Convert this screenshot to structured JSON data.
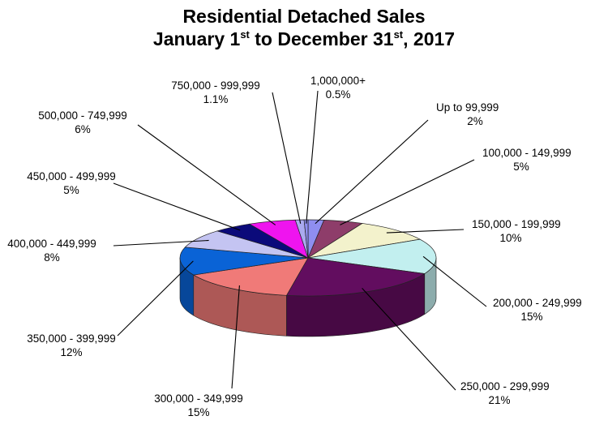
{
  "chart_data": {
    "type": "pie",
    "title_line1": "Residential Detached Sales",
    "title_line2": {
      "p1": "January 1",
      "s1": "st",
      "p2": " to December 31",
      "s2": "st",
      "p3": ", 2017"
    },
    "slices": [
      {
        "label": "Up to 99,999",
        "pct_text": "2%",
        "value": 2,
        "color": "#8f8ef0"
      },
      {
        "label": "100,000 - 149,999",
        "pct_text": "5%",
        "value": 5,
        "color": "#8e3d6a"
      },
      {
        "label": "150,000 - 199,999",
        "pct_text": "10%",
        "value": 10,
        "color": "#f3f2cc"
      },
      {
        "label": "200,000 - 249,999",
        "pct_text": "15%",
        "value": 15,
        "color": "#c2efef"
      },
      {
        "label": "250,000 - 299,999",
        "pct_text": "21%",
        "value": 21,
        "color": "#620d5f"
      },
      {
        "label": "300,000 - 349,999",
        "pct_text": "15%",
        "value": 15,
        "color": "#f07a78"
      },
      {
        "label": "350,000 - 399,999",
        "pct_text": "12%",
        "value": 12,
        "color": "#0a63d6"
      },
      {
        "label": "400,000 - 449,999",
        "pct_text": "8%",
        "value": 8,
        "color": "#c4c4f2"
      },
      {
        "label": "450,000 - 499,999",
        "pct_text": "5%",
        "value": 5,
        "color": "#0b0a7a"
      },
      {
        "label": "500,000 - 749,999",
        "pct_text": "6%",
        "value": 6,
        "color": "#ef14ef"
      },
      {
        "label": "750,000 - 999,999",
        "pct_text": "1.1%",
        "value": 1.1,
        "color": "#aaaaf0"
      },
      {
        "label": "1,000,000+",
        "pct_text": "0.5%",
        "value": 0.5,
        "color": "#8f8ef0"
      }
    ]
  }
}
